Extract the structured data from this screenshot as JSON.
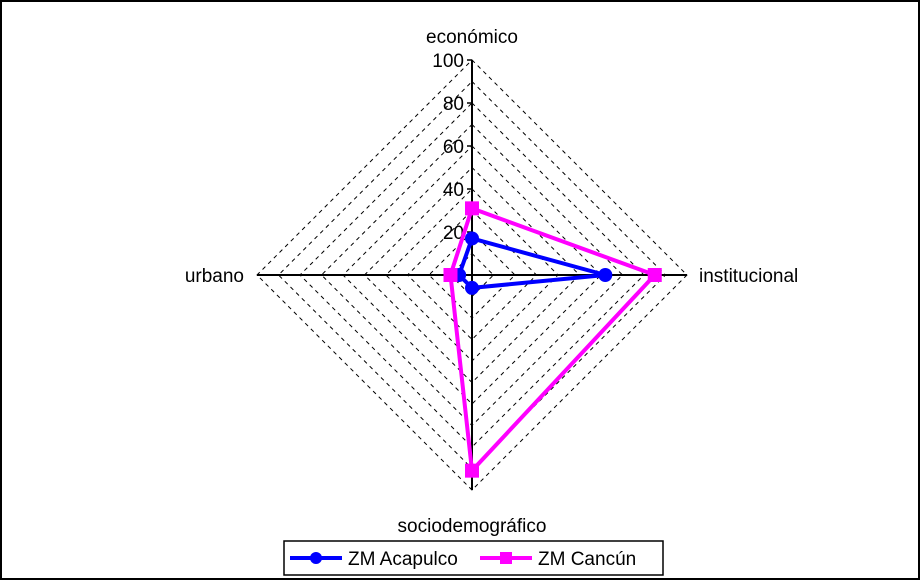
{
  "chart_data": {
    "type": "radar",
    "axes": [
      "económico",
      "institucional",
      "sociodemográfico",
      "urbano"
    ],
    "rlim": [
      0,
      100
    ],
    "ticks": [
      "0",
      "20",
      "40",
      "60",
      "80",
      "100"
    ],
    "grid": "dashed",
    "legend_position": "bottom",
    "series": [
      {
        "name": "ZM Acapulco",
        "values": [
          17,
          62,
          6,
          6
        ],
        "color": "#0000ff",
        "marker": "circle"
      },
      {
        "name": "ZM Cancún",
        "values": [
          31,
          85,
          91,
          10
        ],
        "color": "#ff00ff",
        "marker": "square"
      }
    ]
  }
}
